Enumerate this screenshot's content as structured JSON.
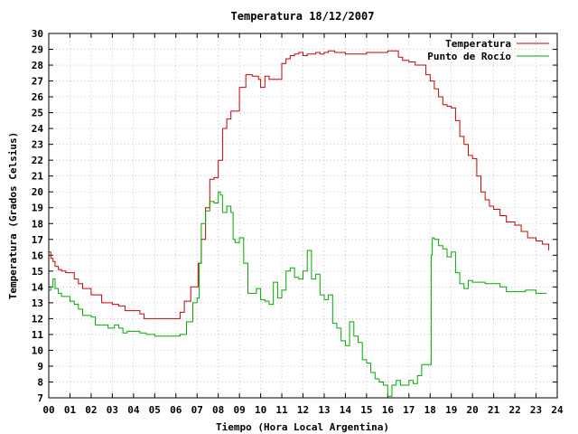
{
  "chart_data": {
    "type": "line",
    "title": "Temperatura 18/12/2007",
    "xlabel": "Tiempo (Hora Local Argentina)",
    "ylabel": "Temperatura (Grados Celsius)",
    "xlim": [
      0,
      24
    ],
    "ylim": [
      7,
      30
    ],
    "x_ticks": [
      "00",
      "01",
      "02",
      "03",
      "04",
      "05",
      "06",
      "07",
      "08",
      "09",
      "10",
      "11",
      "12",
      "13",
      "14",
      "15",
      "16",
      "17",
      "18",
      "19",
      "20",
      "21",
      "22",
      "23",
      "24"
    ],
    "y_ticks": [
      7,
      8,
      9,
      10,
      11,
      12,
      13,
      14,
      15,
      16,
      17,
      18,
      19,
      20,
      21,
      22,
      23,
      24,
      25,
      26,
      27,
      28,
      29,
      30
    ],
    "grid": true,
    "legend_position": "top-right",
    "series": [
      {
        "name": "Temperatura",
        "color": "#cc0000",
        "x": [
          0.0,
          0.1,
          0.2,
          0.3,
          0.45,
          0.6,
          0.8,
          1.0,
          1.2,
          1.4,
          1.6,
          1.8,
          2.0,
          2.5,
          3.0,
          3.3,
          3.6,
          4.0,
          4.3,
          4.5,
          5.0,
          5.5,
          6.0,
          6.2,
          6.4,
          6.7,
          6.9,
          7.05,
          7.2,
          7.4,
          7.6,
          7.8,
          8.0,
          8.2,
          8.4,
          8.6,
          8.8,
          9.0,
          9.3,
          9.6,
          9.9,
          10.0,
          10.2,
          10.4,
          10.6,
          11.0,
          11.2,
          11.4,
          11.6,
          11.8,
          12.0,
          12.2,
          12.4,
          12.6,
          12.8,
          13.0,
          13.2,
          13.5,
          13.8,
          14.0,
          14.5,
          15.0,
          15.5,
          16.0,
          16.3,
          16.5,
          16.7,
          17.0,
          17.3,
          17.5,
          17.8,
          18.0,
          18.2,
          18.4,
          18.6,
          18.8,
          19.0,
          19.2,
          19.4,
          19.6,
          19.8,
          20.0,
          20.2,
          20.4,
          20.6,
          20.8,
          21.0,
          21.3,
          21.6,
          22.0,
          22.3,
          22.6,
          23.0,
          23.3,
          23.6
        ],
        "y": [
          16.2,
          15.8,
          15.6,
          15.3,
          15.1,
          15.0,
          14.9,
          14.9,
          14.5,
          14.2,
          13.9,
          13.9,
          13.5,
          13.0,
          12.9,
          12.8,
          12.5,
          12.5,
          12.3,
          12.0,
          12.0,
          12.0,
          12.0,
          12.4,
          13.1,
          14.0,
          14.0,
          15.5,
          17.0,
          19.0,
          20.8,
          20.9,
          22.0,
          24.0,
          24.6,
          25.1,
          25.1,
          26.6,
          27.4,
          27.3,
          27.1,
          26.6,
          27.3,
          27.1,
          27.1,
          28.1,
          28.4,
          28.6,
          28.7,
          28.8,
          28.6,
          28.7,
          28.7,
          28.8,
          28.7,
          28.8,
          28.9,
          28.8,
          28.8,
          28.7,
          28.7,
          28.8,
          28.8,
          28.9,
          28.9,
          28.5,
          28.3,
          28.2,
          28.0,
          28.0,
          27.4,
          27.0,
          26.5,
          26.0,
          25.5,
          25.4,
          25.3,
          24.5,
          23.5,
          23.0,
          22.3,
          22.1,
          21.0,
          20.0,
          19.5,
          19.1,
          18.9,
          18.5,
          18.1,
          17.9,
          17.5,
          17.1,
          16.9,
          16.7,
          16.3
        ]
      },
      {
        "name": "Punto de Rocío",
        "color": "#00aa00",
        "x": [
          0.0,
          0.1,
          0.2,
          0.3,
          0.45,
          0.6,
          0.8,
          1.0,
          1.2,
          1.4,
          1.6,
          2.0,
          2.2,
          2.5,
          2.8,
          3.1,
          3.3,
          3.5,
          3.7,
          4.0,
          4.3,
          4.6,
          5.0,
          5.5,
          6.0,
          6.2,
          6.5,
          6.8,
          7.0,
          7.1,
          7.2,
          7.4,
          7.6,
          7.8,
          8.0,
          8.1,
          8.2,
          8.4,
          8.6,
          8.7,
          8.8,
          9.0,
          9.2,
          9.4,
          9.6,
          9.8,
          10.0,
          10.2,
          10.4,
          10.6,
          10.8,
          11.0,
          11.2,
          11.4,
          11.6,
          11.8,
          12.0,
          12.2,
          12.4,
          12.6,
          12.8,
          13.0,
          13.2,
          13.4,
          13.6,
          13.8,
          14.0,
          14.2,
          14.4,
          14.6,
          14.8,
          15.0,
          15.2,
          15.4,
          15.6,
          15.8,
          16.0,
          16.2,
          16.4,
          16.6,
          16.8,
          17.0,
          17.2,
          17.4,
          17.6,
          17.8,
          18.0,
          18.05,
          18.1,
          18.2,
          18.4,
          18.6,
          18.8,
          19.0,
          19.2,
          19.4,
          19.6,
          19.8,
          20.0,
          20.3,
          20.6,
          21.0,
          21.3,
          21.6,
          22.0,
          22.5,
          23.0,
          23.5
        ],
        "y": [
          13.8,
          14.0,
          14.5,
          13.9,
          13.6,
          13.4,
          13.4,
          13.1,
          12.9,
          12.6,
          12.2,
          12.1,
          11.6,
          11.6,
          11.4,
          11.6,
          11.4,
          11.1,
          11.2,
          11.2,
          11.1,
          11.0,
          10.9,
          10.9,
          10.9,
          11.0,
          11.8,
          13.0,
          13.3,
          15.5,
          18.0,
          18.8,
          19.4,
          19.3,
          20.0,
          19.8,
          18.7,
          19.1,
          18.7,
          17.0,
          16.8,
          17.1,
          15.5,
          13.6,
          13.6,
          13.9,
          13.2,
          13.1,
          12.9,
          14.3,
          13.3,
          13.8,
          15.0,
          15.2,
          14.6,
          14.5,
          15.0,
          16.3,
          14.5,
          14.8,
          13.5,
          13.2,
          13.5,
          11.7,
          11.4,
          10.6,
          10.3,
          11.8,
          10.9,
          10.5,
          9.4,
          9.2,
          8.6,
          8.2,
          8.0,
          7.8,
          7.1,
          7.8,
          8.1,
          7.8,
          7.8,
          8.1,
          7.9,
          8.4,
          9.1,
          9.1,
          9.1,
          16.0,
          17.1,
          17.0,
          16.6,
          16.4,
          15.9,
          16.2,
          14.9,
          14.2,
          13.9,
          14.4,
          14.3,
          14.3,
          14.2,
          14.2,
          14.0,
          13.7,
          13.7,
          13.8,
          13.6,
          13.6
        ]
      }
    ]
  }
}
